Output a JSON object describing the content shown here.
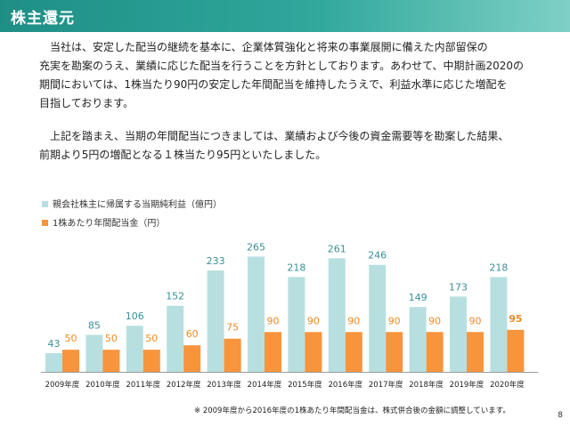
{
  "header": {
    "title": "株主還元"
  },
  "paragraph1": {
    "lines": [
      "当社は、安定した配当の継続を基本に、企業体質強化と将来の事業展開に備えた内部留保の",
      "充実を勘案のうえ、業績に応じた配当を行うことを方針としております。あわせて、中期計画2020の",
      "期間においては、1株当たり90円の安定した年間配当を維持したうえで、利益水準に応じた増配を",
      "目指しております。"
    ]
  },
  "paragraph2": {
    "lines": [
      "上記を踏まえ、当期の年間配当につきましては、業績および今後の資金需要等を勘案した結果、",
      "前期より5円の増配となる１株当たり95円といたしました。"
    ]
  },
  "chart_data": {
    "type": "bar",
    "categories": [
      "2009年度",
      "2010年度",
      "2011年度",
      "2012年度",
      "2013年度",
      "2014年度",
      "2015年度",
      "2016年度",
      "2017年度",
      "2018年度",
      "2019年度",
      "2020年度"
    ],
    "series": [
      {
        "name": "親会社株主に帰属する当期純利益（億円）",
        "values": [
          43,
          85,
          106,
          152,
          233,
          265,
          218,
          261,
          246,
          149,
          173,
          218
        ],
        "color": "#b8dfe0",
        "label_color": "#3a8f9a"
      },
      {
        "name": "1株あたり年間配当金（円）",
        "values": [
          50,
          50,
          50,
          60,
          75,
          90,
          90,
          90,
          90,
          90,
          90,
          95
        ],
        "color": "#f7943c",
        "label_color": "#f08a24"
      }
    ],
    "legend_position": "top-left"
  },
  "footnote": "※ 2009年度から2016年度の1株あたり年間配当金は、株式併合後の金額に調整しています。",
  "page_number": "8"
}
